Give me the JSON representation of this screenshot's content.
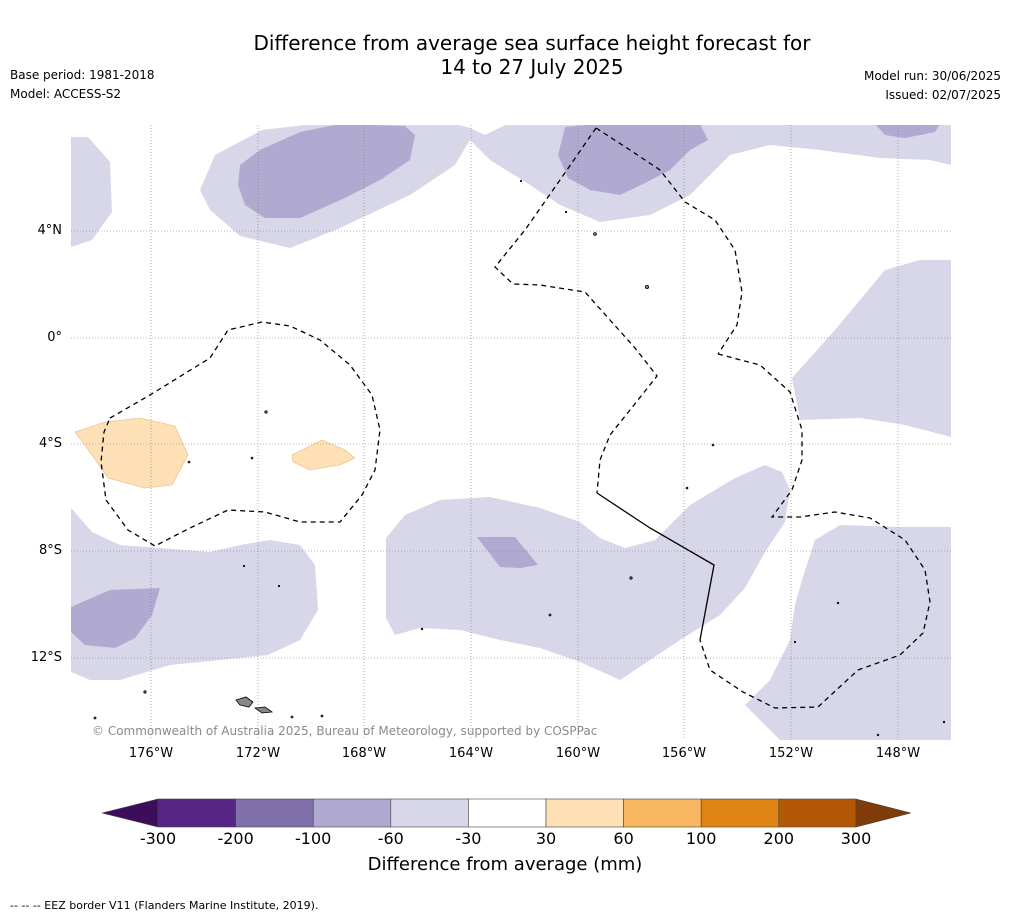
{
  "title_line1": "Difference from average sea surface height forecast for",
  "title_line2": "14 to 27 July 2025",
  "base_period": "Base period: 1981-2018",
  "model": "Model: ACCESS-S2",
  "model_run": "Model run: 30/06/2025",
  "issued": "Issued: 02/07/2025",
  "lat_labels": [
    "4°N",
    "0°",
    "4°S",
    "8°S",
    "12°S"
  ],
  "lon_labels": [
    "176°W",
    "172°W",
    "168°W",
    "164°W",
    "160°W",
    "156°W",
    "152°W",
    "148°W"
  ],
  "copyright": "© Commonwealth of Australia 2025, Bureau of Meteorology, supported by COSPPac",
  "colorbar": {
    "ticks": [
      "-300",
      "-200",
      "-100",
      "-60",
      "-30",
      "30",
      "60",
      "100",
      "200",
      "300"
    ],
    "colors": [
      "#3d0d5c",
      "#572586",
      "#8070aa",
      "#b0a9d0",
      "#d7d7e9",
      "#ffffff",
      "#fde0b5",
      "#f9b660",
      "#e08414",
      "#b35806",
      "#7f3b08"
    ],
    "label": "Difference from average (mm)"
  },
  "footnote": "--  --  -- EEZ border V11 (Flanders Marine Institute, 2019)."
}
